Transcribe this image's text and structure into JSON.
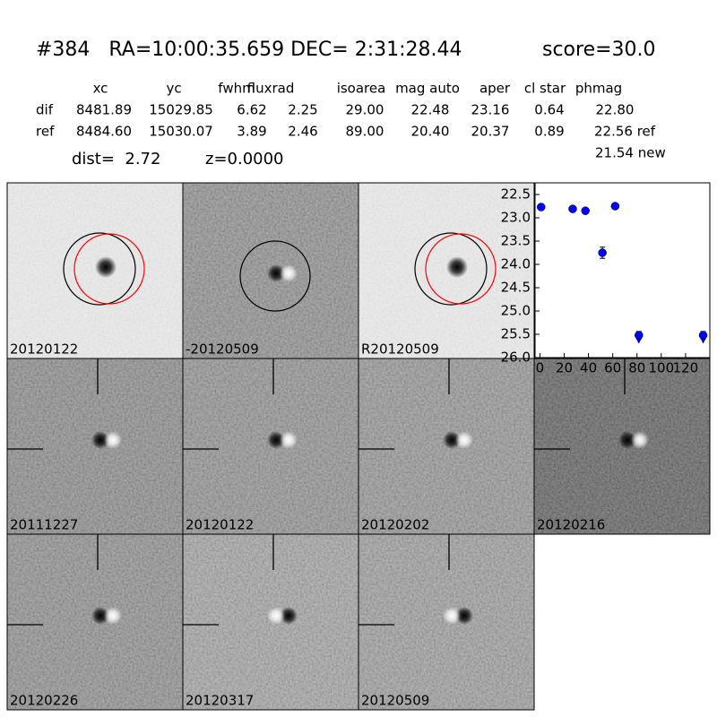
{
  "header": {
    "title": "#384   RA=10:00:35.659 DEC= 2:31:28.44",
    "score": "score=30.0"
  },
  "table": {
    "columns": [
      "xc",
      "yc",
      "fwhm",
      "fluxrad",
      "isoarea",
      "mag auto",
      "aper",
      "cl star",
      "phmag"
    ],
    "rows": [
      [
        "dif",
        "8481.89",
        "15029.85",
        "6.62",
        "2.25",
        "29.00",
        "22.48",
        "23.16",
        "0.64",
        "22.80"
      ],
      [
        "ref",
        "8484.60",
        "15030.07",
        "3.89",
        "2.46",
        "89.00",
        "20.40",
        "20.37",
        "0.89",
        "22.56 ref"
      ]
    ],
    "extra": "21.54 new",
    "dist": "dist=  2.72",
    "z": "z=0.0000"
  },
  "stamps": [
    {
      "label": "20120122",
      "color": "#000000"
    },
    {
      "label": "-20120509",
      "color": "#000000"
    },
    {
      "label": "R20120509",
      "color": "#000000"
    },
    {
      "label": "20111227",
      "color": "#000000"
    },
    {
      "label": "20120122",
      "color": "#ff0000"
    },
    {
      "label": "20120202",
      "color": "#000000"
    },
    {
      "label": "20120216",
      "color": "#000000"
    },
    {
      "label": "20120226",
      "color": "#000000"
    },
    {
      "label": "20120317",
      "color": "#000000"
    },
    {
      "label": "20120509",
      "color": "#000000"
    }
  ],
  "chart_data": {
    "type": "scatter",
    "color": "#0000ff",
    "x": [
      1,
      27,
      37.5,
      62,
      51.5,
      81.5,
      134.5
    ],
    "values": [
      22.77,
      22.81,
      22.85,
      22.75,
      23.75,
      25.52,
      25.52
    ],
    "errors": [
      0.04,
      0.04,
      0.04,
      0.04,
      0.12,
      0.08,
      0.08
    ],
    "upper_limits": [
      false,
      false,
      false,
      false,
      false,
      true,
      true
    ],
    "xlim": [
      -4,
      140
    ],
    "ylim": [
      26.0,
      22.25
    ],
    "y_inverted": true,
    "xticks": [
      0,
      20,
      40,
      60,
      80,
      100,
      120
    ],
    "yticks": [
      22.5,
      {
        "value": 23,
        "label": "23.0"
      },
      23.5,
      {
        "value": 24,
        "label": "24.0"
      },
      24.5,
      {
        "value": 25,
        "label": "25.0"
      },
      25.5,
      {
        "value": 26,
        "label": "26.0"
      }
    ]
  }
}
